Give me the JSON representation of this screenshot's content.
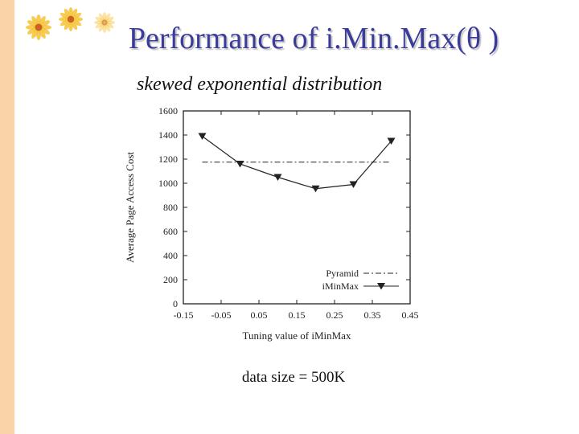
{
  "slide": {
    "title": "Performance of i.Min.Max(θ )",
    "subtitle": "skewed exponential distribution",
    "caption": "data size = 500K"
  },
  "colors": {
    "title": "#3b3b9a",
    "left_bar": "#fbd3a8",
    "flower_petal": "#f6c338",
    "flower_center": "#c8641e"
  },
  "chart_data": {
    "type": "line",
    "xlabel": "Tuning value of iMinMax",
    "ylabel": "Average Page Access Cost",
    "xlim": [
      -0.15,
      0.45
    ],
    "ylim": [
      0,
      1600
    ],
    "x_ticks": [
      "-0.15",
      "-0.05",
      "0.05",
      "0.15",
      "0.25",
      "0.35",
      "0.45"
    ],
    "y_ticks": [
      "0",
      "200",
      "400",
      "600",
      "800",
      "1000",
      "1200",
      "1400",
      "1600"
    ],
    "grid": false,
    "legend_position": "bottom-right",
    "series": [
      {
        "name": "Pyramid",
        "style": "dash-dot",
        "x": [
          -0.1,
          0.4
        ],
        "y": [
          1175,
          1175
        ]
      },
      {
        "name": "iMinMax",
        "style": "solid-triangle-markers",
        "x": [
          -0.1,
          0.0,
          0.1,
          0.2,
          0.3,
          0.4
        ],
        "y": [
          1390,
          1160,
          1050,
          955,
          990,
          1350
        ]
      }
    ]
  }
}
